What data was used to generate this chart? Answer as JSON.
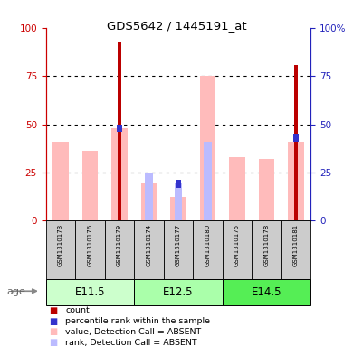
{
  "title": "GDS5642 / 1445191_at",
  "samples": [
    "GSM1310173",
    "GSM1310176",
    "GSM1310179",
    "GSM1310174",
    "GSM1310177",
    "GSM1310180",
    "GSM1310175",
    "GSM1310178",
    "GSM1310181"
  ],
  "age_groups": [
    {
      "label": "E11.5",
      "start": 0,
      "end": 3
    },
    {
      "label": "E12.5",
      "start": 3,
      "end": 6
    },
    {
      "label": "E14.5",
      "start": 6,
      "end": 9
    }
  ],
  "count_values": [
    0,
    0,
    93,
    0,
    0,
    0,
    0,
    0,
    81
  ],
  "percentile_values": [
    0,
    0,
    48,
    0,
    19,
    0,
    0,
    0,
    43
  ],
  "value_absent": [
    41,
    36,
    48,
    19,
    12,
    75,
    33,
    32,
    41
  ],
  "rank_absent": [
    0,
    0,
    0,
    25,
    19,
    41,
    0,
    0,
    0
  ],
  "ylim": [
    0,
    100
  ],
  "left_yticks": [
    0,
    25,
    50,
    75,
    100
  ],
  "right_yticks": [
    0,
    25,
    50,
    75,
    100
  ],
  "count_color": "#bb0000",
  "percentile_color": "#3333cc",
  "value_absent_color": "#ffbbbb",
  "rank_absent_color": "#bbbbff",
  "left_axis_color": "#cc0000",
  "right_axis_color": "#2222bb",
  "sample_bg_color": "#cccccc",
  "age_group_colors": [
    "#bbffbb",
    "#88ee88",
    "#55cc55"
  ],
  "legend_items": [
    {
      "label": "count",
      "color": "#bb0000"
    },
    {
      "label": "percentile rank within the sample",
      "color": "#3333cc"
    },
    {
      "label": "value, Detection Call = ABSENT",
      "color": "#ffbbbb"
    },
    {
      "label": "rank, Detection Call = ABSENT",
      "color": "#bbbbff"
    }
  ]
}
